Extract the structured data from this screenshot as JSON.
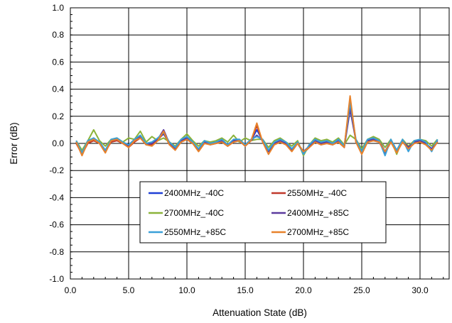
{
  "chart_data": {
    "type": "line",
    "xlabel": "Attenuation State (dB)",
    "ylabel": "Error  (dB)",
    "xlim": [
      0,
      32.5
    ],
    "ylim": [
      -1.0,
      1.0
    ],
    "x_ticks": [
      0,
      5,
      10,
      15,
      20,
      25,
      30
    ],
    "x_tick_labels": [
      "0.0",
      "5.0",
      "10.0",
      "15.0",
      "20.0",
      "25.0",
      "30.0"
    ],
    "y_ticks": [
      -1.0,
      -0.8,
      -0.6,
      -0.4,
      -0.2,
      0.0,
      0.2,
      0.4,
      0.6,
      0.8,
      1.0
    ],
    "y_tick_labels": [
      "-1.0",
      "-0.8",
      "-0.6",
      "-0.4",
      "-0.2",
      "0.0",
      "0.2",
      "0.4",
      "0.6",
      "0.8",
      "1.0"
    ],
    "grid": true,
    "legend": "center",
    "x": [
      0.5,
      1.0,
      1.5,
      2.0,
      2.5,
      3.0,
      3.5,
      4.0,
      4.5,
      5.0,
      5.5,
      6.0,
      6.5,
      7.0,
      7.5,
      8.0,
      8.5,
      9.0,
      9.5,
      10.0,
      10.5,
      11.0,
      11.5,
      12.0,
      12.5,
      13.0,
      13.5,
      14.0,
      14.5,
      15.0,
      15.5,
      16.0,
      16.5,
      17.0,
      17.5,
      18.0,
      18.5,
      19.0,
      19.5,
      20.0,
      20.5,
      21.0,
      21.5,
      22.0,
      22.5,
      23.0,
      23.5,
      24.0,
      24.5,
      25.0,
      25.5,
      26.0,
      26.5,
      27.0,
      27.5,
      28.0,
      28.5,
      29.0,
      29.5,
      30.0,
      30.5,
      31.0,
      31.5
    ],
    "series": [
      {
        "name": "2400MHz_-40C",
        "color": "#1f3fd6",
        "values": [
          0.01,
          -0.07,
          0.01,
          0.03,
          0.01,
          -0.05,
          0.02,
          0.03,
          0.0,
          -0.02,
          0.02,
          0.05,
          0.0,
          0.0,
          0.03,
          0.07,
          0.0,
          -0.03,
          0.02,
          0.04,
          0.01,
          -0.04,
          0.01,
          0.0,
          0.01,
          0.02,
          -0.01,
          0.02,
          0.03,
          -0.01,
          0.02,
          0.1,
          0.02,
          -0.05,
          0.0,
          0.02,
          0.0,
          -0.04,
          0.0,
          -0.06,
          -0.02,
          0.02,
          0.0,
          0.01,
          0.0,
          0.02,
          -0.02,
          0.28,
          0.02,
          -0.06,
          0.02,
          0.03,
          0.02,
          -0.06,
          0.02,
          -0.05,
          0.02,
          -0.03,
          0.01,
          0.02,
          0.0,
          -0.04,
          0.02
        ]
      },
      {
        "name": "2550MHz_-40C",
        "color": "#c0392b",
        "values": [
          0.0,
          -0.08,
          0.0,
          0.02,
          0.0,
          -0.06,
          0.01,
          0.02,
          0.0,
          -0.03,
          0.01,
          0.04,
          -0.01,
          -0.01,
          0.02,
          0.08,
          -0.01,
          -0.04,
          0.01,
          0.03,
          0.0,
          -0.05,
          0.0,
          0.0,
          0.0,
          0.01,
          -0.02,
          0.01,
          0.02,
          -0.02,
          0.02,
          0.13,
          0.01,
          -0.06,
          -0.01,
          0.01,
          -0.01,
          -0.05,
          0.0,
          -0.07,
          -0.03,
          0.01,
          -0.01,
          0.0,
          -0.01,
          0.01,
          -0.03,
          0.32,
          0.01,
          -0.07,
          0.01,
          0.02,
          0.01,
          -0.07,
          0.01,
          -0.06,
          0.01,
          -0.04,
          0.0,
          0.01,
          -0.01,
          -0.05,
          0.01
        ]
      },
      {
        "name": "2700MHz_-40C",
        "color": "#8bb33a",
        "values": [
          0.02,
          -0.05,
          0.02,
          0.1,
          0.02,
          -0.02,
          0.03,
          0.04,
          0.01,
          0.04,
          0.03,
          0.09,
          0.01,
          0.05,
          0.02,
          0.04,
          0.01,
          -0.02,
          0.03,
          0.07,
          0.02,
          -0.02,
          0.02,
          0.01,
          0.02,
          0.04,
          0.01,
          0.06,
          0.01,
          0.04,
          0.02,
          0.03,
          0.03,
          -0.03,
          0.02,
          0.04,
          0.01,
          -0.02,
          0.02,
          -0.09,
          -0.01,
          0.04,
          0.02,
          0.03,
          0.01,
          0.04,
          -0.01,
          0.06,
          0.03,
          -0.04,
          0.03,
          0.05,
          0.03,
          -0.03,
          0.03,
          -0.08,
          0.03,
          -0.02,
          0.02,
          0.03,
          0.02,
          -0.02,
          0.03
        ]
      },
      {
        "name": "2400MHz_+85C",
        "color": "#5b3a9e",
        "values": [
          0.01,
          -0.08,
          0.01,
          0.04,
          0.0,
          -0.06,
          0.02,
          0.03,
          0.0,
          -0.02,
          0.02,
          0.05,
          -0.01,
          0.0,
          0.03,
          0.1,
          0.0,
          -0.04,
          0.02,
          0.04,
          0.0,
          -0.05,
          0.01,
          -0.01,
          0.0,
          0.02,
          -0.02,
          0.02,
          0.02,
          -0.02,
          0.02,
          0.06,
          0.02,
          -0.06,
          0.0,
          0.02,
          0.0,
          -0.05,
          0.0,
          -0.07,
          -0.02,
          0.02,
          0.0,
          0.01,
          -0.01,
          0.02,
          -0.03,
          0.25,
          0.02,
          -0.07,
          0.02,
          0.03,
          0.01,
          -0.07,
          0.02,
          -0.06,
          0.02,
          -0.03,
          0.01,
          0.02,
          0.0,
          -0.05,
          0.02
        ]
      },
      {
        "name": "2550MHz_+85C",
        "color": "#3aa0d8",
        "values": [
          0.02,
          -0.07,
          0.02,
          0.04,
          0.01,
          -0.05,
          0.03,
          0.04,
          0.01,
          -0.01,
          0.03,
          0.06,
          0.0,
          0.01,
          0.04,
          0.08,
          0.01,
          -0.03,
          0.03,
          0.05,
          0.01,
          -0.04,
          0.02,
          0.0,
          0.01,
          0.03,
          -0.01,
          0.03,
          0.03,
          -0.01,
          0.03,
          0.05,
          0.03,
          -0.05,
          0.01,
          0.03,
          0.01,
          -0.04,
          0.01,
          -0.08,
          -0.01,
          0.03,
          0.01,
          0.02,
          0.0,
          0.03,
          -0.02,
          0.3,
          0.03,
          -0.06,
          0.03,
          0.04,
          0.02,
          -0.09,
          0.03,
          -0.05,
          0.03,
          -0.06,
          0.02,
          0.03,
          0.01,
          -0.06,
          0.03
        ]
      },
      {
        "name": "2700MHz_+85C",
        "color": "#e8822b",
        "values": [
          0.01,
          -0.09,
          0.01,
          0.03,
          0.0,
          -0.07,
          0.02,
          0.03,
          0.0,
          -0.03,
          0.02,
          0.04,
          -0.01,
          -0.02,
          0.02,
          0.09,
          -0.01,
          -0.05,
          0.01,
          0.03,
          0.0,
          -0.06,
          0.0,
          -0.01,
          0.0,
          0.01,
          -0.02,
          0.01,
          0.02,
          -0.02,
          0.02,
          0.15,
          0.01,
          -0.08,
          -0.01,
          0.01,
          -0.01,
          -0.06,
          0.0,
          -0.06,
          -0.03,
          0.01,
          -0.01,
          0.0,
          -0.01,
          0.01,
          -0.03,
          0.35,
          0.01,
          -0.08,
          0.01,
          0.02,
          0.01,
          -0.06,
          0.01,
          -0.07,
          0.01,
          -0.04,
          0.0,
          0.01,
          -0.01,
          -0.05,
          0.01
        ]
      }
    ]
  }
}
